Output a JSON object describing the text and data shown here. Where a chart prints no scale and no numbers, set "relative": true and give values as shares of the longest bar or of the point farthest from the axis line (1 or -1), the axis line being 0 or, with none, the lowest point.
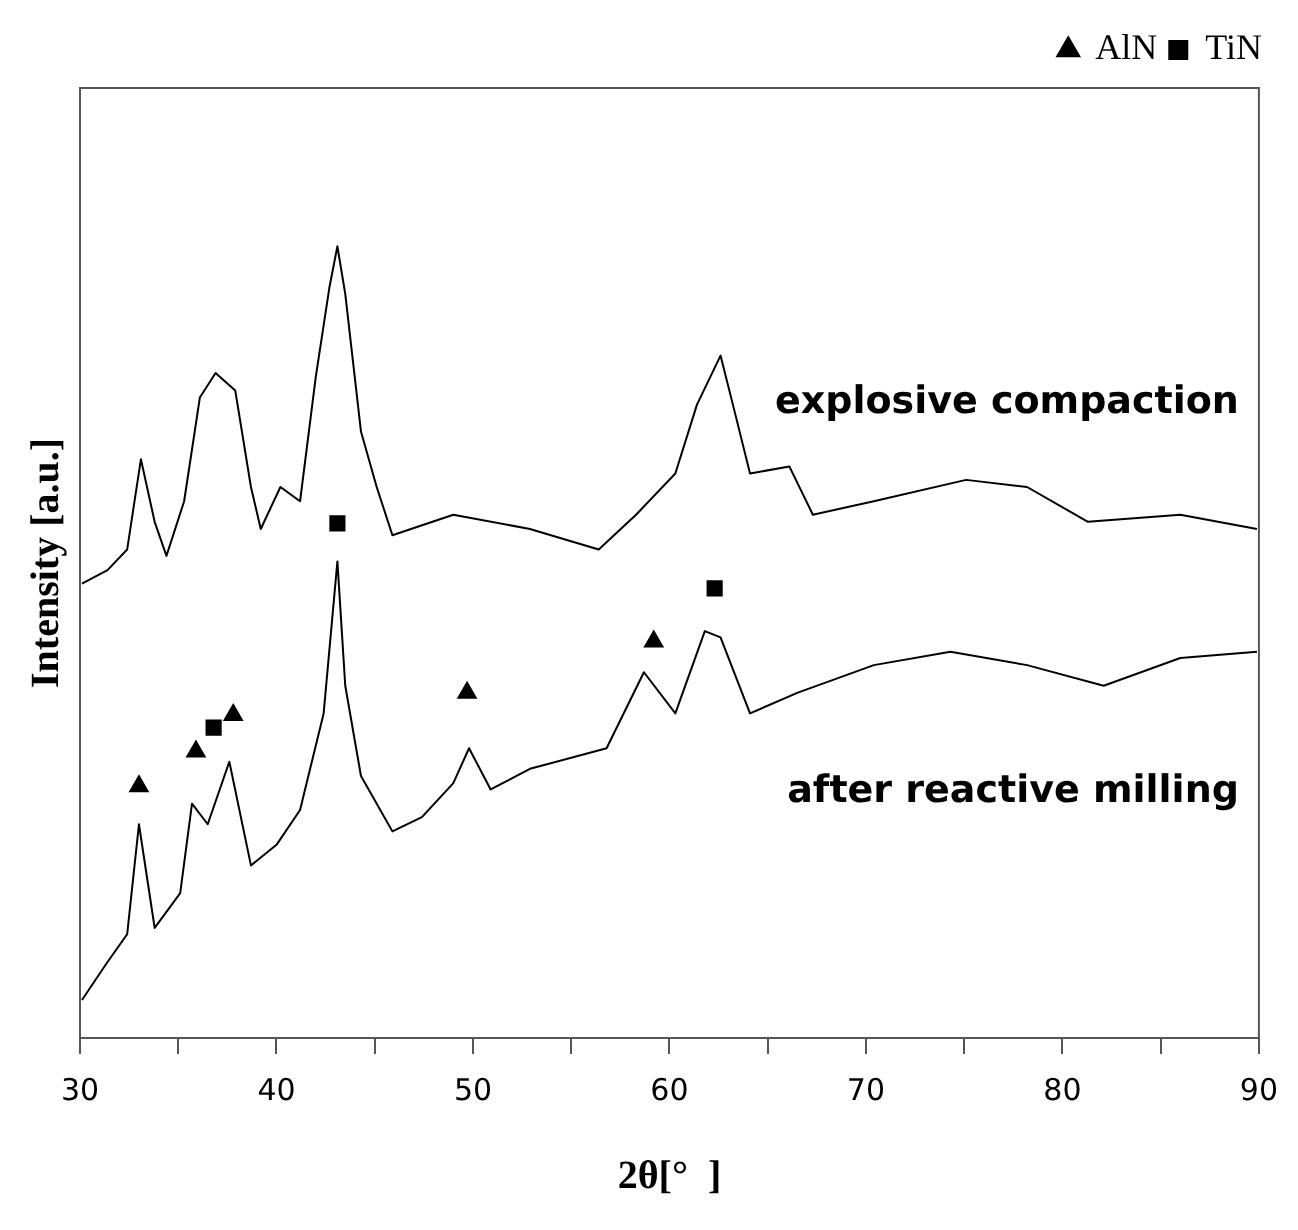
{
  "chart_data": {
    "type": "line",
    "relative": true,
    "xlabel": "2θ[°  ]",
    "ylabel": "Intensity [a.u.]",
    "xlim": [
      30,
      90
    ],
    "xticks": [
      30,
      {
        "value": 35,
        "label": null
      },
      40,
      {
        "value": 45,
        "label": null
      },
      50,
      {
        "value": 55,
        "label": null
      },
      60,
      {
        "value": 65,
        "label": null
      },
      70,
      {
        "value": 75,
        "label": null
      },
      80,
      {
        "value": 85,
        "label": null
      },
      90
    ],
    "grid": false,
    "legend": "top right",
    "tick_labels": "x",
    "line_style": "solid",
    "series": [
      {
        "name": "explosive compaction",
        "color": "#000000",
        "x": [
          30.1,
          31.4,
          32.4,
          33.1,
          33.8,
          34.4,
          35.3,
          36.1,
          36.9,
          37.9,
          38.7,
          39.2,
          40.2,
          41.2,
          42.0,
          42.7,
          43.1,
          43.5,
          44.3,
          45.1,
          45.9,
          49.0,
          52.9,
          56.4,
          58.3,
          60.3,
          61.4,
          62.6,
          63.4,
          64.1,
          66.1,
          67.3,
          70.4,
          75.1,
          78.2,
          81.3,
          86.0,
          89.9
        ],
        "values": [
          0.574,
          0.591,
          0.617,
          0.731,
          0.652,
          0.609,
          0.678,
          0.809,
          0.84,
          0.818,
          0.696,
          0.643,
          0.696,
          0.678,
          0.835,
          0.949,
          1,
          0.94,
          0.766,
          0.696,
          0.635,
          0.661,
          0.643,
          0.617,
          0.661,
          0.713,
          0.8,
          0.862,
          0.783,
          0.713,
          0.722,
          0.661,
          0.678,
          0.705,
          0.696,
          0.652,
          0.661,
          0.643
        ]
      },
      {
        "name": "after reactive milling",
        "color": "#000000",
        "x": [
          30.1,
          31.4,
          32.4,
          33.0,
          33.8,
          35.1,
          35.7,
          36.5,
          37.6,
          38.7,
          40.0,
          41.2,
          42.4,
          43.1,
          43.5,
          44.3,
          45.9,
          47.4,
          49.0,
          49.8,
          50.9,
          52.9,
          56.8,
          58.7,
          60.3,
          61.8,
          62.6,
          64.1,
          66.5,
          70.4,
          74.3,
          78.2,
          82.1,
          86.0,
          89.9
        ],
        "values": [
          0.048,
          0.096,
          0.131,
          0.27,
          0.139,
          0.183,
          0.296,
          0.27,
          0.349,
          0.218,
          0.244,
          0.288,
          0.41,
          0.602,
          0.445,
          0.331,
          0.261,
          0.279,
          0.322,
          0.366,
          0.314,
          0.34,
          0.366,
          0.462,
          0.41,
          0.514,
          0.506,
          0.41,
          0.436,
          0.471,
          0.488,
          0.471,
          0.445,
          0.48,
          0.488
        ]
      },
      {
        "name": "AlN",
        "type": "scatter",
        "marker": "triangle",
        "color": "#000000",
        "x": [
          33.0,
          35.9,
          37.8,
          49.7,
          59.2
        ],
        "values": [
          0.318,
          0.362,
          0.408,
          0.436,
          0.501
        ]
      },
      {
        "name": "TiN",
        "type": "scatter",
        "marker": "square",
        "color": "#000000",
        "x": [
          36.8,
          43.1,
          62.3
        ],
        "values": [
          0.392,
          0.65,
          0.568
        ]
      }
    ]
  }
}
